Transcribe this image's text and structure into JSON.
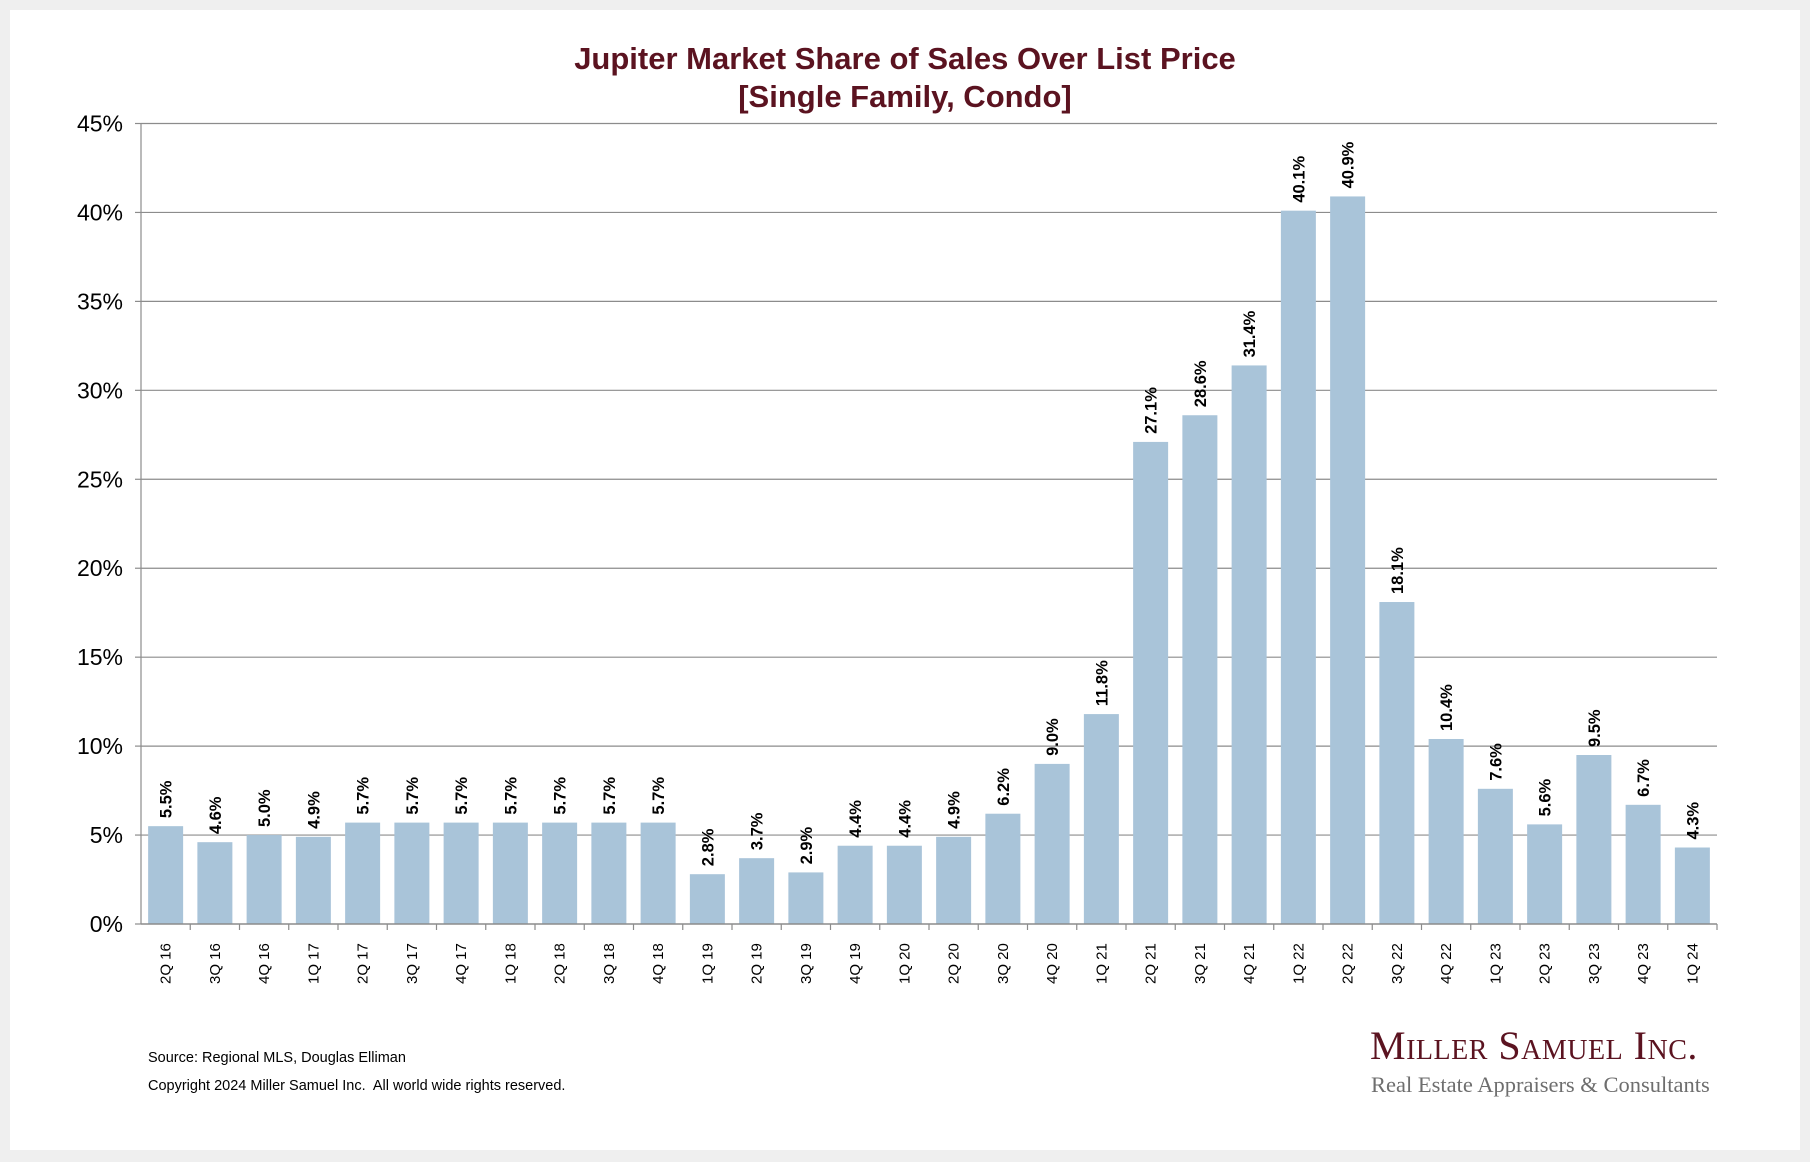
{
  "chart_data": {
    "type": "bar",
    "title": "Jupiter Market Share of Sales Over List Price",
    "subtitle": "[Single Family, Condo]",
    "xlabel": "",
    "ylabel": "",
    "ylim": [
      0,
      45
    ],
    "yticks": [
      0,
      5,
      10,
      15,
      20,
      25,
      30,
      35,
      40,
      45
    ],
    "ytick_labels": [
      "0%",
      "5%",
      "10%",
      "15%",
      "20%",
      "25%",
      "30%",
      "35%",
      "40%",
      "45%"
    ],
    "grid": true,
    "categories": [
      "2Q 16",
      "3Q 16",
      "4Q 16",
      "1Q 17",
      "2Q 17",
      "3Q 17",
      "4Q 17",
      "1Q 18",
      "2Q 18",
      "3Q 18",
      "4Q 18",
      "1Q 19",
      "2Q 19",
      "3Q 19",
      "4Q 19",
      "1Q 20",
      "2Q 20",
      "3Q 20",
      "4Q 20",
      "1Q 21",
      "2Q 21",
      "3Q 21",
      "4Q 21",
      "1Q 22",
      "2Q 22",
      "3Q 22",
      "4Q 22",
      "1Q 23",
      "2Q 23",
      "3Q 23",
      "4Q 23",
      "1Q 24"
    ],
    "values": [
      5.5,
      4.6,
      5.0,
      4.9,
      5.7,
      5.7,
      5.7,
      5.7,
      5.7,
      5.7,
      5.7,
      2.8,
      3.7,
      2.9,
      4.4,
      4.4,
      4.9,
      6.2,
      9.0,
      11.8,
      27.1,
      28.6,
      31.4,
      40.1,
      40.9,
      18.1,
      10.4,
      7.6,
      5.6,
      9.5,
      6.7,
      4.3
    ],
    "data_labels": [
      "5.5%",
      "4.6%",
      "5.0%",
      "4.9%",
      "5.7%",
      "5.7%",
      "5.7%",
      "5.7%",
      "5.7%",
      "5.7%",
      "5.7%",
      "2.8%",
      "3.7%",
      "2.9%",
      "4.4%",
      "4.4%",
      "4.9%",
      "6.2%",
      "9.0%",
      "11.8%",
      "27.1%",
      "28.6%",
      "31.4%",
      "40.1%",
      "40.9%",
      "18.1%",
      "10.4%",
      "7.6%",
      "5.6%",
      "9.5%",
      "6.7%",
      "4.3%"
    ],
    "bar_color": "#a9c4d9",
    "legend": "none"
  },
  "colors": {
    "title": "#5b1320",
    "grid": "#8c8c8c"
  },
  "footer": {
    "source": "Source: Regional MLS, Douglas Elliman",
    "copyright": "Copyright 2024 Miller Samuel Inc.  All world wide rights reserved."
  },
  "logo": {
    "name": "Miller Samuel Inc.",
    "tagline": "Real Estate Appraisers & Consultants"
  }
}
